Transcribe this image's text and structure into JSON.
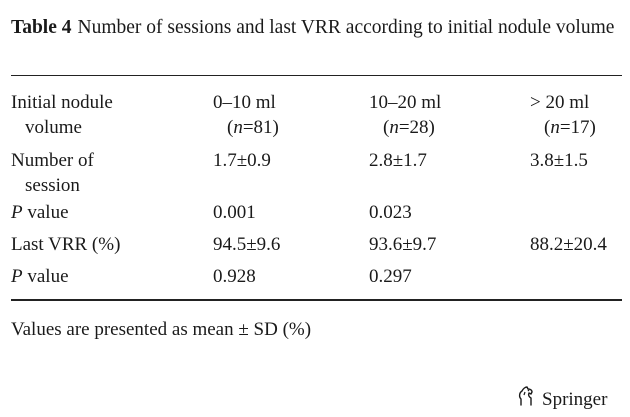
{
  "table": {
    "label": "Table 4",
    "caption": "Number of sessions and last VRR according to initial nodule volume",
    "header": {
      "col0_line1": "Initial nodule",
      "col0_line2": "volume",
      "groups": [
        {
          "range": "0–10 ml",
          "n_prefix": "(",
          "n_var": "n",
          "n_value": "=81)"
        },
        {
          "range": "10–20 ml",
          "n_prefix": "(",
          "n_var": "n",
          "n_value": "=28)"
        },
        {
          "range": "> 20 ml",
          "n_prefix": "(",
          "n_var": "n",
          "n_value": "=17)"
        }
      ]
    },
    "rows": [
      {
        "label_line1": "Number of",
        "label_line2": "session",
        "values": [
          "1.7±0.9",
          "2.8±1.7",
          "3.8±1.5"
        ]
      },
      {
        "label_italic": "P",
        "label_rest": " value",
        "values": [
          "0.001",
          "0.023",
          ""
        ]
      },
      {
        "label_line1": "Last VRR (%)",
        "values": [
          "94.5±9.6",
          "93.6±9.7",
          "88.2±20.4"
        ]
      },
      {
        "label_italic": "P",
        "label_rest": " value",
        "values": [
          "0.928",
          "0.297",
          ""
        ]
      }
    ],
    "footnote": "Values are presented as mean ± SD (%)"
  },
  "publisher": {
    "name": "Springer",
    "logo_icon": "springer-horse-icon"
  }
}
